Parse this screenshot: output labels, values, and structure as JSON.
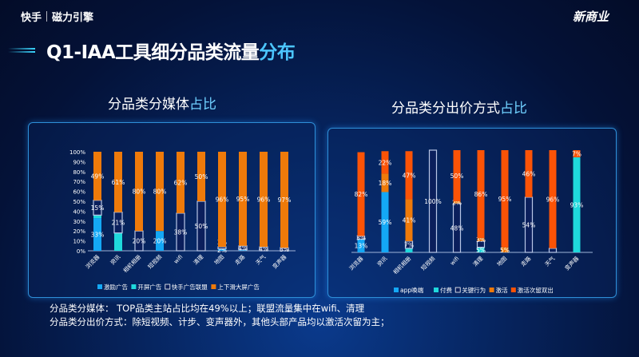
{
  "header": {
    "brand1": "快手",
    "brand2": "磁力引擎",
    "logo_text": "新商业"
  },
  "title": {
    "main": "Q1-IAA工具细分品类流量",
    "highlight": "分布"
  },
  "left_subtitle": {
    "main": "分品类分媒体",
    "highlight": "占比"
  },
  "right_subtitle": {
    "main": "分品类分出价方式",
    "highlight": "占比"
  },
  "notes": [
    "分品类分媒体： TOP品类主站占比均在49%以上；联盟流量集中在wifi、清理",
    "分品类分出价方式：除短视频、计步、变声器外，其他头部产品均以激活次留为主；"
  ],
  "chart_data": [
    {
      "type": "bar",
      "stacked": true,
      "ylim": [
        0,
        100
      ],
      "yticks": [
        "0%",
        "10%",
        "20%",
        "30%",
        "40%",
        "50%",
        "60%",
        "70%",
        "80%",
        "90%",
        "100%"
      ],
      "legend": "bottom",
      "categories": [
        "浏览器",
        "资讯",
        "相机相册",
        "短视频",
        "wifi",
        "清理",
        "地图",
        "走路",
        "天气",
        "变声器"
      ],
      "series": [
        {
          "name": "激励广告",
          "color": "#14a8f5",
          "values": [
            33,
            0,
            0,
            20,
            0,
            0,
            2,
            1,
            0,
            0
          ],
          "labels": [
            "33%",
            "",
            "",
            "20%",
            "",
            "",
            "2%",
            "",
            "",
            ""
          ]
        },
        {
          "name": "开屏广告",
          "color": "#1fd9dc",
          "values": [
            3,
            18,
            0,
            0,
            0,
            0,
            0,
            0,
            0,
            0
          ],
          "labels": [
            "",
            "",
            "",
            "",
            "",
            "",
            "",
            "",
            "",
            ""
          ]
        },
        {
          "name": "快手广告联盟",
          "color": "#0b1f5c",
          "values": [
            15,
            21,
            20,
            0,
            38,
            50,
            2,
            4,
            4,
            3
          ],
          "labels": [
            "15%",
            "21%",
            "20%",
            "",
            "38%",
            "50%",
            "2%",
            "4%",
            "4%",
            "3%"
          ]
        },
        {
          "name": "上下滑大屏广告",
          "color": "#ee7a0a",
          "values": [
            49,
            61,
            80,
            80,
            62,
            50,
            96,
            95,
            96,
            97
          ],
          "labels": [
            "49%",
            "61%",
            "80%",
            "80%",
            "62%",
            "50%",
            "96%",
            "95%",
            "96%",
            "97%"
          ]
        }
      ]
    },
    {
      "type": "bar",
      "stacked": true,
      "ylim": [
        0,
        100
      ],
      "legend": "bottom",
      "categories": [
        "浏览器",
        "资讯",
        "相机相册",
        "短视频",
        "wifi",
        "清理",
        "地图",
        "走路",
        "天气",
        "变声器"
      ],
      "series": [
        {
          "name": "app唤端",
          "color": "#14a8f5",
          "values": [
            13,
            59,
            0,
            0,
            0,
            0,
            0,
            0,
            0,
            0
          ],
          "labels": [
            "13%",
            "59%",
            "",
            "",
            "",
            "",
            "",
            "",
            "",
            ""
          ]
        },
        {
          "name": "付费",
          "color": "#1fd9dc",
          "values": [
            0,
            0,
            4,
            0,
            0,
            5,
            0,
            0,
            0,
            93
          ],
          "labels": [
            "",
            "",
            "",
            "",
            "",
            "5%",
            "",
            "",
            "",
            "93%"
          ]
        },
        {
          "name": "关键行为",
          "color": "#0b1f5c",
          "values": [
            3,
            0,
            7,
            100,
            48,
            6,
            0,
            54,
            4,
            0
          ],
          "labels": [
            "3%",
            "",
            "7%",
            "100%",
            "48%",
            "",
            "",
            "54%",
            "",
            ""
          ]
        },
        {
          "name": "激活",
          "color": "#ee7a0a",
          "values": [
            0,
            18,
            41,
            0,
            2,
            3,
            5,
            0,
            0,
            0
          ],
          "labels": [
            "",
            "18%",
            "41%",
            "",
            "2%",
            "3%",
            "5%",
            "",
            "",
            ""
          ]
        },
        {
          "name": "激活次留双出",
          "color": "#fb5306",
          "values": [
            82,
            22,
            47,
            0,
            50,
            86,
            95,
            46,
            96,
            7
          ],
          "labels": [
            "82%",
            "22%",
            "47%",
            "",
            "50%",
            "86%",
            "95%",
            "46%",
            "96%",
            "7%"
          ]
        }
      ]
    }
  ]
}
